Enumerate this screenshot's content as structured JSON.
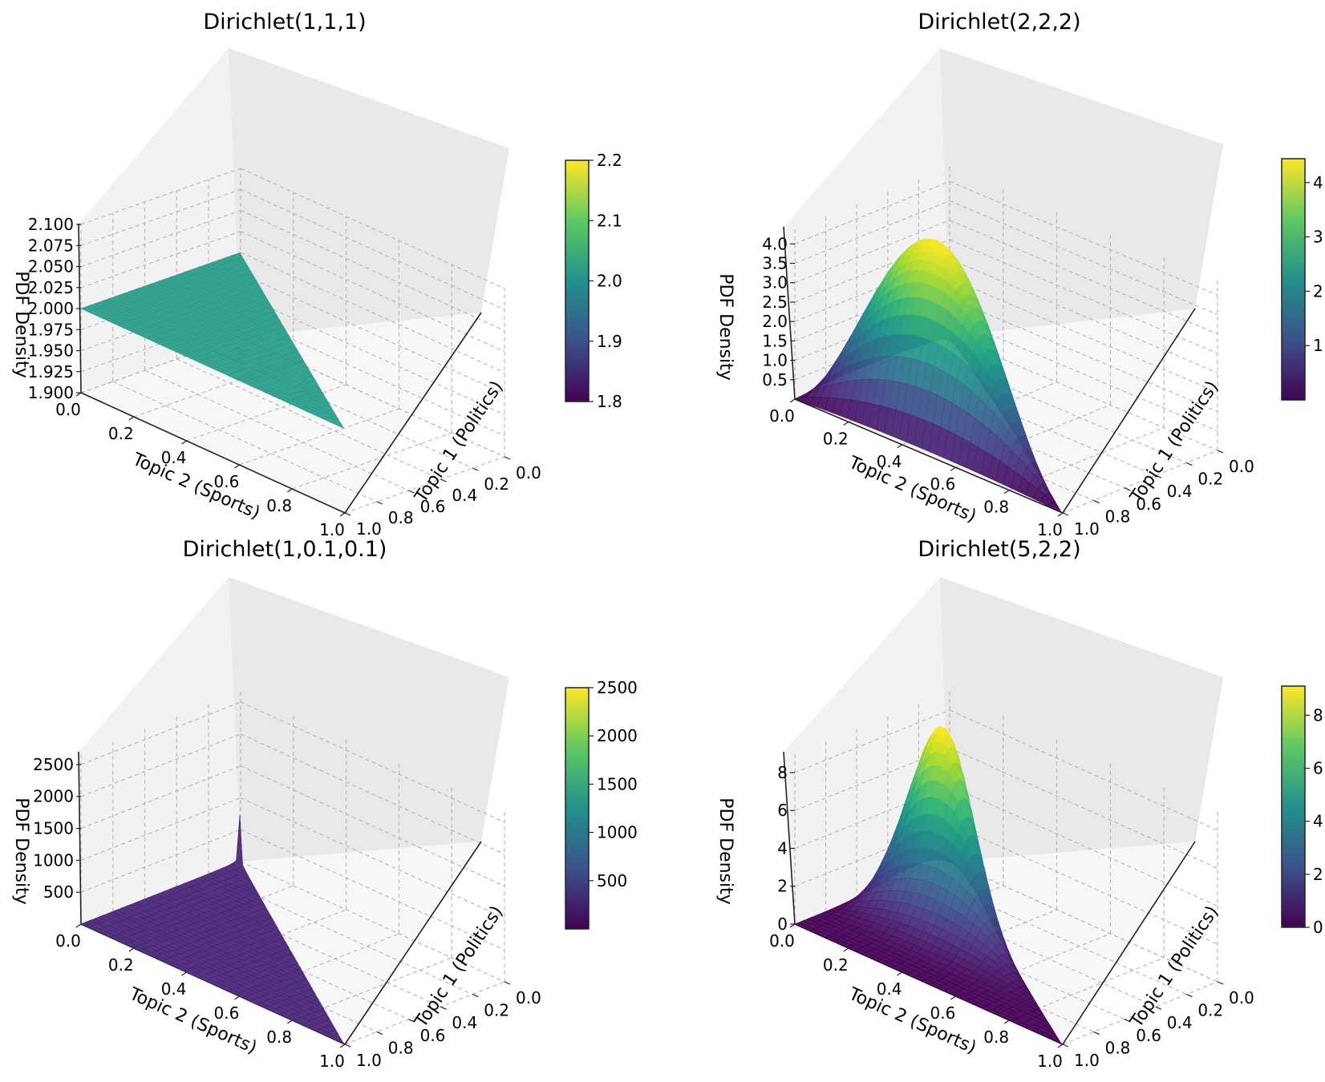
{
  "chart_data": [
    {
      "type": "surface3d",
      "title": "Dirichlet(1,1,1)",
      "alpha": [
        1,
        1,
        1
      ],
      "xlabel": "Topic 2 (Sports)",
      "ylabel": "Topic 1 (Politics)",
      "zlabel": "PDF Density",
      "x_ticks": [
        "0.0",
        "0.2",
        "0.4",
        "0.6",
        "0.8",
        "1.0"
      ],
      "y_ticks": [
        "0.0",
        "0.2",
        "0.4",
        "0.6",
        "0.8",
        "1.0"
      ],
      "z_ticks": [
        "1.900",
        "1.925",
        "1.950",
        "1.975",
        "2.000",
        "2.025",
        "2.050",
        "2.075",
        "2.100"
      ],
      "zlim": [
        1.9,
        2.1
      ],
      "colorbar": {
        "range": [
          1.8,
          2.2
        ],
        "ticks": [
          "1.8",
          "1.9",
          "2.0",
          "2.1",
          "2.2"
        ]
      },
      "surface_color": "#2a9d8a",
      "colormap": "viridis"
    },
    {
      "type": "surface3d",
      "title": "Dirichlet(2,2,2)",
      "alpha": [
        2,
        2,
        2
      ],
      "xlabel": "Topic 2 (Sports)",
      "ylabel": "Topic 1 (Politics)",
      "zlabel": "PDF Density",
      "x_ticks": [
        "0.0",
        "0.2",
        "0.4",
        "0.6",
        "0.8",
        "1.0"
      ],
      "y_ticks": [
        "0.0",
        "0.2",
        "0.4",
        "0.6",
        "0.8",
        "1.0"
      ],
      "z_ticks": [
        "0.5",
        "1.0",
        "1.5",
        "2.0",
        "2.5",
        "3.0",
        "3.5",
        "4.0"
      ],
      "zlim": [
        0,
        4.44
      ],
      "colorbar": {
        "range": [
          0,
          4.44
        ],
        "ticks": [
          "1",
          "2",
          "3",
          "4"
        ]
      },
      "colormap": "viridis"
    },
    {
      "type": "surface3d",
      "title": "Dirichlet(1,0.1,0.1)",
      "alpha": [
        1,
        0.1,
        0.1
      ],
      "xlabel": "Topic 2 (Sports)",
      "ylabel": "Topic 1 (Politics)",
      "zlabel": "PDF Density",
      "x_ticks": [
        "0.0",
        "0.2",
        "0.4",
        "0.6",
        "0.8",
        "1.0"
      ],
      "y_ticks": [
        "0.0",
        "0.2",
        "0.4",
        "0.6",
        "0.8",
        "1.0"
      ],
      "z_ticks": [
        "500",
        "1000",
        "1500",
        "2000",
        "2500"
      ],
      "zlim": [
        0,
        2700
      ],
      "colorbar": {
        "range": [
          0,
          2500
        ],
        "ticks": [
          "500",
          "1000",
          "1500",
          "2000",
          "2500"
        ]
      },
      "surface_color": "#482677",
      "colormap": "viridis"
    },
    {
      "type": "surface3d",
      "title": "Dirichlet(5,2,2)",
      "alpha": [
        5,
        2,
        2
      ],
      "xlabel": "Topic 2 (Sports)",
      "ylabel": "Topic 1 (Politics)",
      "zlabel": "PDF Density",
      "x_ticks": [
        "0.0",
        "0.2",
        "0.4",
        "0.6",
        "0.8",
        "1.0"
      ],
      "y_ticks": [
        "0.0",
        "0.2",
        "0.4",
        "0.6",
        "0.8",
        "1.0"
      ],
      "z_ticks": [
        "0",
        "2",
        "4",
        "6",
        "8"
      ],
      "zlim": [
        0,
        9.1
      ],
      "colorbar": {
        "range": [
          0,
          9.1
        ],
        "ticks": [
          "0",
          "2",
          "4",
          "6",
          "8"
        ]
      },
      "colormap": "viridis"
    }
  ]
}
